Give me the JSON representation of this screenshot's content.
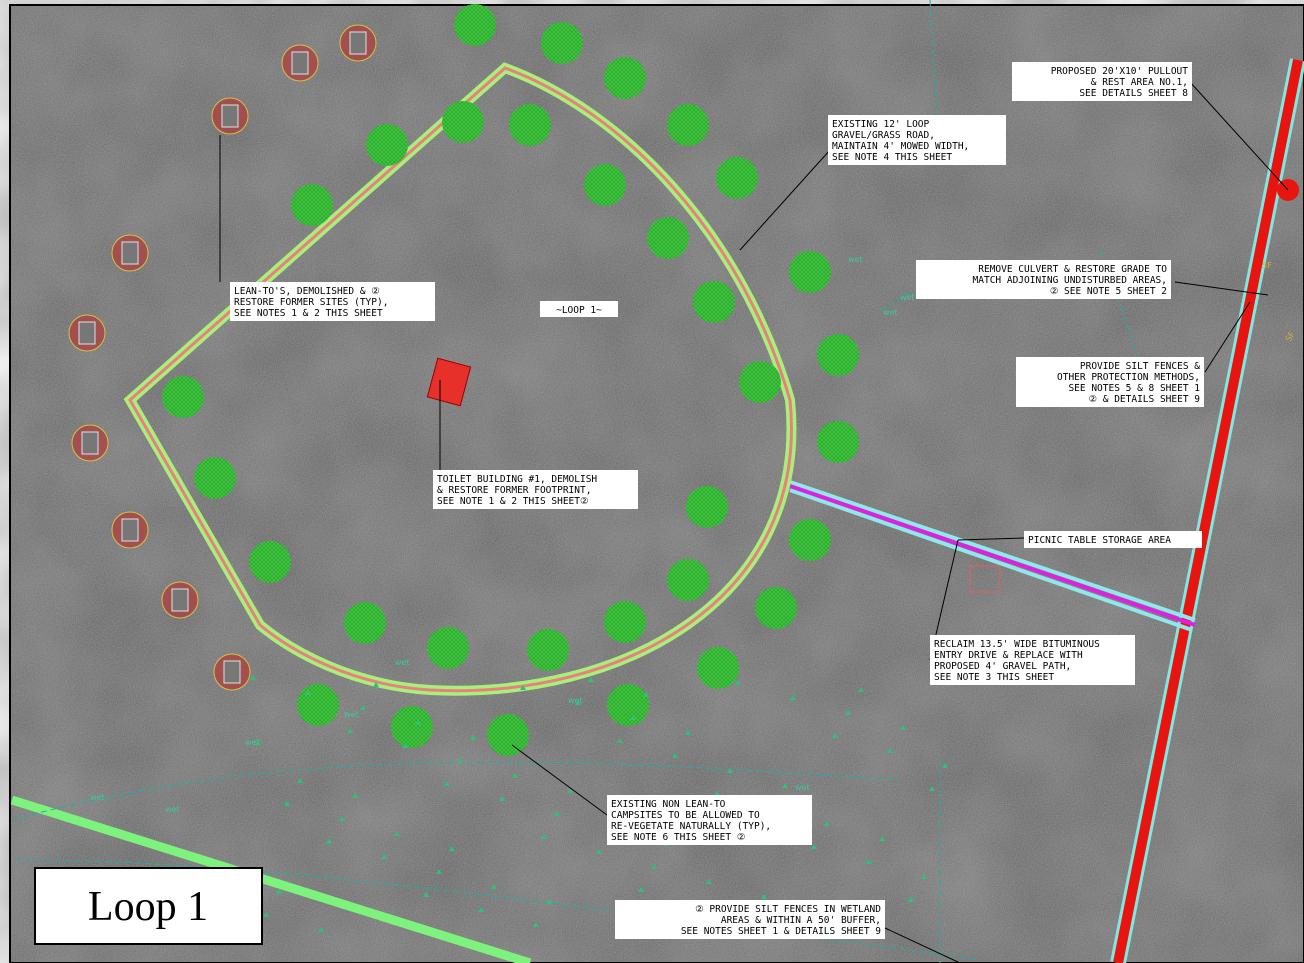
{
  "map_title": "Loop 1",
  "loop_label": "~LOOP 1~",
  "wet_label": "wet",
  "silt_fence_label": "SF",
  "notes": [
    {
      "lines": [
        "PROPOSED 20'X10' PULLOUT",
        "& REST AREA NO.1,",
        "SEE DETAILS SHEET 8"
      ]
    },
    {
      "lines": [
        "EXISTING 12' LOOP",
        "GRAVEL/GRASS ROAD,",
        "MAINTAIN 4' MOWED WIDTH,",
        "SEE NOTE 4 THIS SHEET"
      ]
    },
    {
      "lines": [
        "REMOVE CULVERT & RESTORE GRADE TO",
        "MATCH ADJOINING UNDISTURBED AREAS,",
        "② SEE NOTE 5 SHEET 2"
      ]
    },
    {
      "lines": [
        "LEAN-TO'S, DEMOLISHED & ②",
        "RESTORE FORMER SITES (TYP),",
        "SEE NOTES 1 & 2 THIS SHEET"
      ]
    },
    {
      "lines": [
        "PROVIDE SILT FENCES &",
        "OTHER PROTECTION METHODS,",
        "SEE NOTES 5 & 8 SHEET 1",
        "② & DETAILS SHEET 9"
      ]
    },
    {
      "lines": [
        "TOILET BUILDING #1, DEMOLISH",
        "& RESTORE FORMER FOOTPRINT,",
        "SEE NOTE 1 & 2 THIS SHEET②"
      ]
    },
    {
      "lines": [
        "PICNIC TABLE STORAGE AREA"
      ]
    },
    {
      "lines": [
        "RECLAIM 13.5' WIDE BITUMINOUS",
        "ENTRY DRIVE & REPLACE WITH",
        "PROPOSED 4' GRAVEL PATH,",
        "SEE NOTE 3 THIS SHEET"
      ]
    },
    {
      "lines": [
        "EXISTING NON LEAN-TO",
        "CAMPSITES TO BE ALLOWED TO",
        "RE-VEGETATE NATURALLY (TYP),",
        "SEE NOTE 6 THIS SHEET ②"
      ]
    },
    {
      "lines": [
        "②  PROVIDE SILT FENCES IN WETLAND",
        "AREAS & WITHIN A 50' BUFFER,",
        "SEE NOTES SHEET 1 & DETAILS SHEET 9"
      ]
    }
  ]
}
